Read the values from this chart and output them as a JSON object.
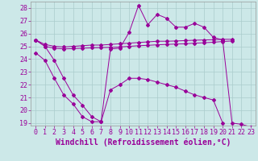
{
  "background_color": "#cce8e8",
  "grid_color": "#aacccc",
  "line_color": "#990099",
  "xlabel": "Windchill (Refroidissement éolien,°C)",
  "xlabel_fontsize": 7,
  "tick_fontsize": 6,
  "xlim_min": -0.5,
  "xlim_max": 23.5,
  "ylim_min": 18.8,
  "ylim_max": 28.5,
  "yticks": [
    19,
    20,
    21,
    22,
    23,
    24,
    25,
    26,
    27,
    28
  ],
  "xticks": [
    0,
    1,
    2,
    3,
    4,
    5,
    6,
    7,
    8,
    9,
    10,
    11,
    12,
    13,
    14,
    15,
    16,
    17,
    18,
    19,
    20,
    21,
    22,
    23
  ],
  "series1_x": [
    0,
    1,
    2,
    3,
    4,
    5,
    6,
    7,
    8,
    9,
    10,
    11,
    12,
    13,
    14,
    15,
    16,
    17,
    18,
    19,
    20,
    21,
    22,
    23
  ],
  "series1_y": [
    25.5,
    25.0,
    23.9,
    22.5,
    21.2,
    20.4,
    19.5,
    19.1,
    24.8,
    24.85,
    26.1,
    28.2,
    26.7,
    27.5,
    27.2,
    26.5,
    26.5,
    26.8,
    26.5,
    25.7,
    25.5,
    19.0,
    18.9,
    18.7
  ],
  "series2_x": [
    0,
    1,
    2,
    3,
    4,
    5,
    6,
    7,
    8,
    9,
    10,
    11,
    12,
    13,
    14,
    15,
    16,
    17,
    18,
    19,
    20,
    21
  ],
  "series2_y": [
    25.5,
    25.15,
    25.0,
    24.95,
    25.0,
    25.05,
    25.1,
    25.1,
    25.15,
    25.2,
    25.25,
    25.3,
    25.35,
    25.4,
    25.4,
    25.42,
    25.45,
    25.48,
    25.5,
    25.52,
    25.55,
    25.55
  ],
  "series3_x": [
    0,
    1,
    2,
    3,
    4,
    5,
    6,
    7,
    8,
    9,
    10,
    11,
    12,
    13,
    14,
    15,
    16,
    17,
    18,
    19,
    20,
    21
  ],
  "series3_y": [
    25.5,
    25.0,
    24.85,
    24.8,
    24.82,
    24.85,
    24.88,
    24.9,
    24.92,
    24.95,
    25.0,
    25.05,
    25.08,
    25.12,
    25.15,
    25.18,
    25.2,
    25.25,
    25.28,
    25.32,
    25.38,
    25.42
  ],
  "series4_x": [
    0,
    1,
    2,
    3,
    4,
    5,
    6,
    7,
    8,
    9,
    10,
    11,
    12,
    13,
    14,
    15,
    16,
    17,
    18,
    19,
    20
  ],
  "series4_y": [
    24.5,
    23.9,
    22.5,
    21.2,
    20.5,
    19.5,
    19.1,
    19.1,
    21.6,
    22.0,
    22.5,
    22.5,
    22.4,
    22.2,
    22.0,
    21.8,
    21.5,
    21.2,
    21.0,
    20.8,
    19.0
  ]
}
